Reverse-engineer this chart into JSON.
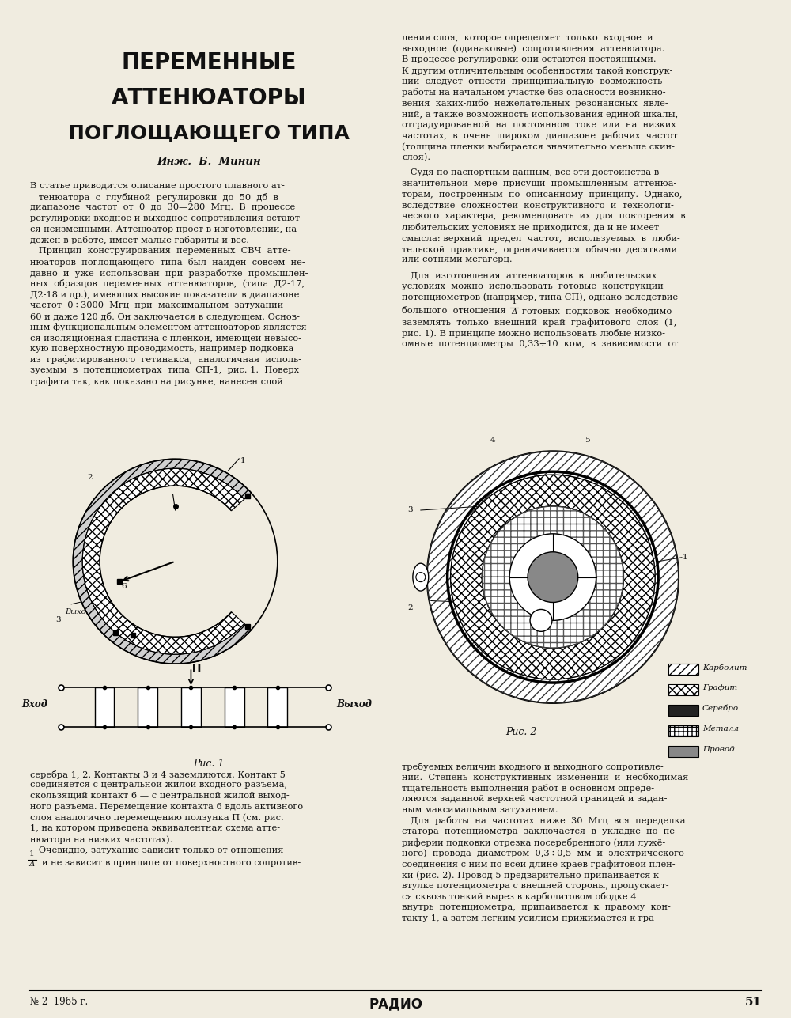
{
  "page_width": 10.0,
  "page_height": 12.87,
  "bg_color": "#f0ece0",
  "title_line1": "ПЕРЕМЕННЫЕ",
  "title_line2": "АТТЕНЮАТОРЫ",
  "title_line3": "ПОГЛОЩАЮЩЕГО ТИПА",
  "author": "Инж.  Б.  Минин",
  "left_col_lines": [
    "В статье приводится описание простого плавного ат-",
    "   тенюатора  с  глубиной  регулировки  до  50  дб  в",
    "диапазоне  частот  от  0  до  30—280  Мгц.  В  процессе",
    "регулировки входное и выходное сопротивления остают-",
    "ся неизменными. Аттенюатор прост в изготовлении, на-",
    "дежен в работе, имеет малые габариты и вес.",
    "   Принцип  конструирования  переменных  СВЧ  атте-",
    "нюаторов  поглощающего  типа  был  найден  совсем  не-",
    "давно  и  уже  использован  при  разработке  промышлен-",
    "ных  образцов  переменных  аттенюаторов,  (типа  Д2-17,",
    "Д2-18 и др.), имеющих высокие показатели в диапазоне",
    "частот  0÷3000  Мгц  при  максимальном  затухании",
    "60 и даже 120 дб. Он заключается в следующем. Основ-",
    "ным функциональным элементом аттенюаторов является-",
    "ся изоляционная пластина с пленкой, имеющей невысо-",
    "кую поверхностную проводимость, например подковка",
    "из  графитированного  гетинакса,  аналогичная  исполь-",
    "зуемым  в  потенциометрах  типа  СП-1,  рис. 1.  Поверх",
    "графита так, как показано на рисунке, нанесен слой"
  ],
  "left_col_below_figs": [
    "серебра 1, 2. Контакты 3 и 4 заземляются. Контакт 5",
    "соединяется с центральной жилой входного разъема,",
    "скользящий контакт 6 — с центральной жилой выход-",
    "ного разъема. Перемещение контакта 6 вдоль активного",
    "слоя аналогично перемещению ползунка П (см. рис.",
    "1, на котором приведена эквивалентная схема атте-",
    "нюатора на низких частотах).",
    "   Очевидно, затухание зависит только от отношения"
  ],
  "fraction_left_num": "1",
  "fraction_left_den": "Δ",
  "left_after_fraction": "и не зависит в принципе от поверхностного сопротив-",
  "right_col_top": [
    "ления слоя,  которое определяет  только  входное  и",
    "выходное  (одинаковые)  сопротивления  аттенюатора.",
    "В процессе регулировки они остаются постоянными.",
    "К другим отличительным особенностям такой конструк-",
    "ции  следует  отнести  принципиальную  возможность",
    "работы на начальном участке без опасности возникно-",
    "вения  каких-либо  нежелательных  резонансных  явле-",
    "ний, а также возможность использования единой шкалы,",
    "отградуированной  на  постоянном  токе  или  на  низких",
    "частотах,  в  очень  широком  диапазоне  рабочих  частот",
    "(толщина пленки выбирается значительно меньше скин-",
    "слоя)."
  ],
  "right_col_mid1": [
    "   Судя по паспортным данным, все эти достоинства в",
    "значительной  мере  присущи  промышленным  аттенюа-",
    "торам,  построенным  по  описанному  принципу.  Однако,",
    "вследствие  сложностей  конструктивного  и  технологи-",
    "ческого  характера,  рекомендовать  их  для  повторения  в",
    "любительских условиях не приходится, да и не имеет",
    "смысла: верхний  предел  частот,  используемых  в  люби-",
    "тельской  практике,  ограничивается  обычно  десятками",
    "или сотнями мегагерц."
  ],
  "right_col_mid2": [
    "   Для  изготовления  аттенюаторов  в  любительских",
    "условиях  можно  использовать  готовые  конструкции",
    "потенциометров (например, типа СП), однако вследствие"
  ],
  "fraction_right_prefix": "большого  отношения",
  "fraction_right_suffix": "готовых  подковок  необходимо",
  "right_after_fraction": [
    "заземлять  только  внешний  край  графитового  слоя  (1,",
    "рис. 1). В принципе можно использовать любые низко-",
    "омные  потенциометры  0,33÷10  ком,  в  зависимости  от"
  ],
  "right_col_bottom": [
    "требуемых величин входного и выходного сопротивле-",
    "ний.  Степень  конструктивных  изменений  и  необходимая",
    "тщательность выполнения работ в основном опреде-",
    "ляются заданной верхней частотной границей и задан-",
    "ным максимальным затуханием.",
    "   Для  работы  на  частотах  ниже  30  Мгц  вся  переделка",
    "статора  потенциометра  заключается  в  укладке  по  пе-",
    "риферии подковки отрезка посеребренного (или лужё-",
    "ного)  провода  диаметром  0,3÷0,5  мм  и  электрического",
    "соединения с ним по всей длине краев графитовой плен-",
    "ки (рис. 2). Провод 5 предварительно припаивается к",
    "втулке потенциометра с внешней стороны, пропускает-",
    "ся сквозь тонкий вырез в карболитовом ободке 4",
    "внутрь  потенциометра,  припаивается  к  правому  кон-",
    "такту 1, а затем легким усилием прижимается к гра-"
  ],
  "fig1_caption": "Рис. 1",
  "fig2_caption": "Рис. 2",
  "footer_left": "№ 2  1965 г.",
  "footer_page": "51",
  "footer_brand": "РАДИО",
  "legend_labels": [
    "Карболит",
    "Графит",
    "Серебро",
    "Металл",
    "Провод"
  ]
}
